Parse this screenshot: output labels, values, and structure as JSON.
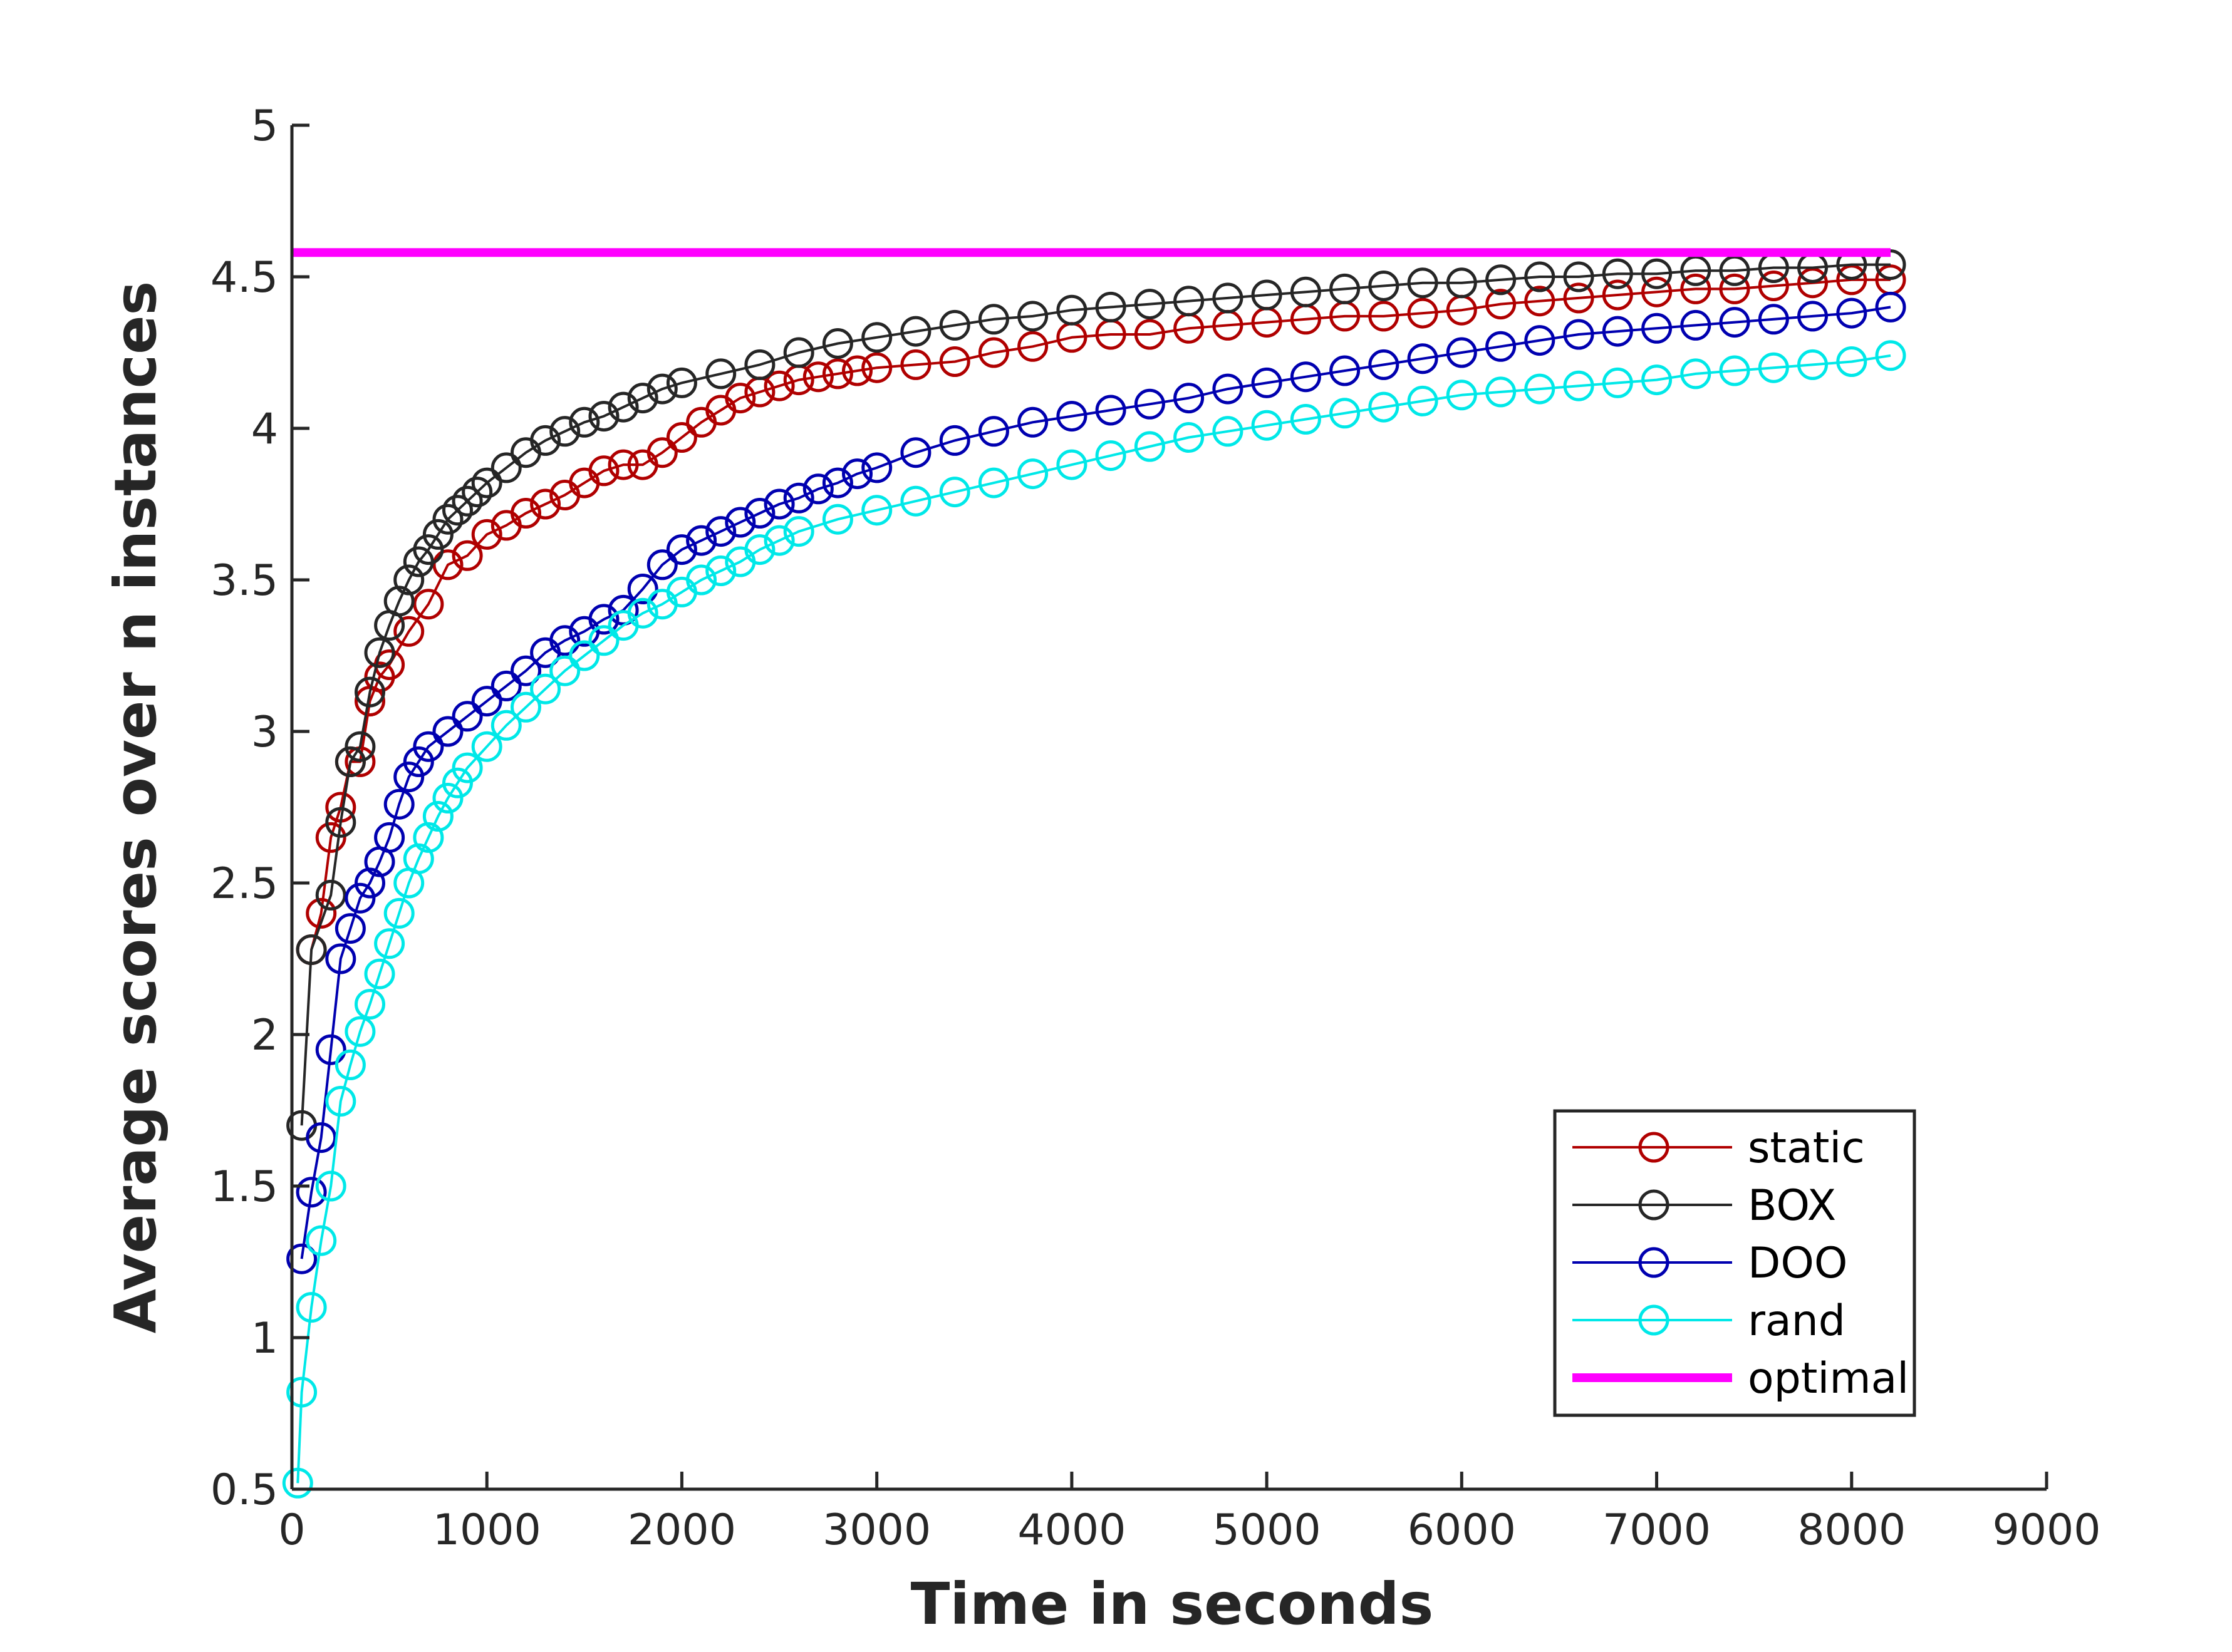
{
  "chart_data": {
    "type": "line",
    "title": "",
    "xlabel": "Time in seconds",
    "ylabel": "Average scores over n instances",
    "xlim": [
      0,
      9000
    ],
    "ylim": [
      0.5,
      5
    ],
    "xticks": [
      0,
      1000,
      2000,
      3000,
      4000,
      5000,
      6000,
      7000,
      8000,
      9000
    ],
    "xtick_labels": [
      "0",
      "1000",
      "2000",
      "3000",
      "4000",
      "5000",
      "6000",
      "7000",
      "8000",
      "9000"
    ],
    "yticks": [
      0.5,
      1,
      1.5,
      2,
      2.5,
      3,
      3.5,
      4,
      4.5,
      5
    ],
    "ytick_labels": [
      "0.5",
      "1",
      "1.5",
      "2",
      "2.5",
      "3",
      "3.5",
      "4",
      "4.5",
      "5"
    ],
    "grid": false,
    "legend_position": "bottom-right",
    "series": [
      {
        "name": "static",
        "color": "#b00000",
        "marker": "circle",
        "x": [
          100,
          150,
          200,
          250,
          300,
          350,
          400,
          450,
          500,
          600,
          700,
          800,
          900,
          1000,
          1100,
          1200,
          1300,
          1400,
          1500,
          1600,
          1700,
          1800,
          1900,
          2000,
          2100,
          2200,
          2300,
          2400,
          2500,
          2600,
          2700,
          2800,
          2900,
          3000,
          3200,
          3400,
          3600,
          3800,
          4000,
          4200,
          4400,
          4600,
          4800,
          5000,
          5200,
          5400,
          5600,
          5800,
          6000,
          6200,
          6400,
          6600,
          6800,
          7000,
          7200,
          7400,
          7600,
          7800,
          8000,
          8200
        ],
        "y": [
          2.28,
          2.4,
          2.65,
          2.75,
          2.9,
          2.9,
          3.1,
          3.18,
          3.22,
          3.33,
          3.42,
          3.55,
          3.58,
          3.65,
          3.68,
          3.72,
          3.75,
          3.78,
          3.82,
          3.86,
          3.88,
          3.88,
          3.92,
          3.97,
          4.02,
          4.06,
          4.1,
          4.12,
          4.14,
          4.16,
          4.17,
          4.18,
          4.19,
          4.2,
          4.21,
          4.22,
          4.25,
          4.27,
          4.3,
          4.31,
          4.31,
          4.33,
          4.34,
          4.35,
          4.36,
          4.37,
          4.37,
          4.38,
          4.39,
          4.41,
          4.42,
          4.43,
          4.44,
          4.45,
          4.46,
          4.46,
          4.47,
          4.48,
          4.49,
          4.49
        ]
      },
      {
        "name": "BOX",
        "color": "#262626",
        "marker": "circle",
        "x": [
          50,
          100,
          200,
          250,
          300,
          350,
          400,
          450,
          500,
          550,
          600,
          650,
          700,
          750,
          800,
          850,
          900,
          950,
          1000,
          1100,
          1200,
          1300,
          1400,
          1500,
          1600,
          1700,
          1800,
          1900,
          2000,
          2200,
          2400,
          2600,
          2800,
          3000,
          3200,
          3400,
          3600,
          3800,
          4000,
          4200,
          4400,
          4600,
          4800,
          5000,
          5200,
          5400,
          5600,
          5800,
          6000,
          6200,
          6400,
          6600,
          6800,
          7000,
          7200,
          7400,
          7600,
          7800,
          8000,
          8200
        ],
        "y": [
          1.7,
          2.28,
          2.46,
          2.7,
          2.9,
          2.95,
          3.13,
          3.26,
          3.35,
          3.43,
          3.5,
          3.56,
          3.6,
          3.65,
          3.7,
          3.73,
          3.76,
          3.79,
          3.82,
          3.87,
          3.92,
          3.96,
          3.99,
          4.02,
          4.04,
          4.07,
          4.1,
          4.13,
          4.15,
          4.18,
          4.21,
          4.25,
          4.28,
          4.3,
          4.32,
          4.34,
          4.36,
          4.37,
          4.39,
          4.4,
          4.41,
          4.42,
          4.43,
          4.44,
          4.45,
          4.46,
          4.47,
          4.48,
          4.48,
          4.49,
          4.5,
          4.5,
          4.51,
          4.51,
          4.52,
          4.52,
          4.53,
          4.53,
          4.54,
          4.54
        ]
      },
      {
        "name": "DOO",
        "color": "#0000b0",
        "marker": "circle",
        "x": [
          50,
          100,
          150,
          200,
          250,
          300,
          350,
          400,
          450,
          500,
          550,
          600,
          650,
          700,
          800,
          900,
          1000,
          1100,
          1200,
          1300,
          1400,
          1500,
          1600,
          1700,
          1800,
          1900,
          2000,
          2100,
          2200,
          2300,
          2400,
          2500,
          2600,
          2700,
          2800,
          2900,
          3000,
          3200,
          3400,
          3600,
          3800,
          4000,
          4200,
          4400,
          4600,
          4800,
          5000,
          5200,
          5400,
          5600,
          5800,
          6000,
          6200,
          6400,
          6600,
          6800,
          7000,
          7200,
          7400,
          7600,
          7800,
          8000,
          8200
        ],
        "y": [
          1.26,
          1.48,
          1.66,
          1.95,
          2.25,
          2.35,
          2.45,
          2.5,
          2.57,
          2.65,
          2.76,
          2.85,
          2.9,
          2.95,
          3.0,
          3.05,
          3.1,
          3.15,
          3.2,
          3.26,
          3.3,
          3.33,
          3.37,
          3.4,
          3.47,
          3.55,
          3.6,
          3.63,
          3.66,
          3.69,
          3.72,
          3.75,
          3.77,
          3.8,
          3.82,
          3.85,
          3.87,
          3.92,
          3.96,
          3.99,
          4.02,
          4.04,
          4.06,
          4.08,
          4.1,
          4.13,
          4.15,
          4.17,
          4.19,
          4.21,
          4.23,
          4.25,
          4.27,
          4.29,
          4.31,
          4.32,
          4.33,
          4.34,
          4.35,
          4.36,
          4.37,
          4.38,
          4.4
        ]
      },
      {
        "name": "rand",
        "color": "#00e8e8",
        "marker": "circle",
        "x": [
          30,
          50,
          100,
          150,
          200,
          250,
          300,
          350,
          400,
          450,
          500,
          550,
          600,
          650,
          700,
          750,
          800,
          850,
          900,
          1000,
          1100,
          1200,
          1300,
          1400,
          1500,
          1600,
          1700,
          1800,
          1900,
          2000,
          2100,
          2200,
          2300,
          2400,
          2500,
          2600,
          2800,
          3000,
          3200,
          3400,
          3600,
          3800,
          4000,
          4200,
          4400,
          4600,
          4800,
          5000,
          5200,
          5400,
          5600,
          5800,
          6000,
          6200,
          6400,
          6600,
          6800,
          7000,
          7200,
          7400,
          7600,
          7800,
          8000,
          8200
        ],
        "y": [
          0.52,
          0.82,
          1.1,
          1.32,
          1.5,
          1.78,
          1.9,
          2.01,
          2.1,
          2.2,
          2.3,
          2.4,
          2.5,
          2.58,
          2.65,
          2.72,
          2.78,
          2.83,
          2.88,
          2.95,
          3.02,
          3.08,
          3.14,
          3.2,
          3.25,
          3.3,
          3.35,
          3.39,
          3.42,
          3.46,
          3.5,
          3.53,
          3.56,
          3.6,
          3.63,
          3.66,
          3.7,
          3.73,
          3.76,
          3.79,
          3.82,
          3.85,
          3.88,
          3.91,
          3.94,
          3.97,
          3.99,
          4.01,
          4.03,
          4.05,
          4.07,
          4.09,
          4.11,
          4.12,
          4.13,
          4.14,
          4.15,
          4.16,
          4.18,
          4.19,
          4.2,
          4.21,
          4.22,
          4.24
        ]
      },
      {
        "name": "optimal",
        "color": "#ff00ff",
        "marker": "none",
        "x": [
          0,
          8200
        ],
        "y": [
          4.58,
          4.58
        ]
      }
    ]
  }
}
